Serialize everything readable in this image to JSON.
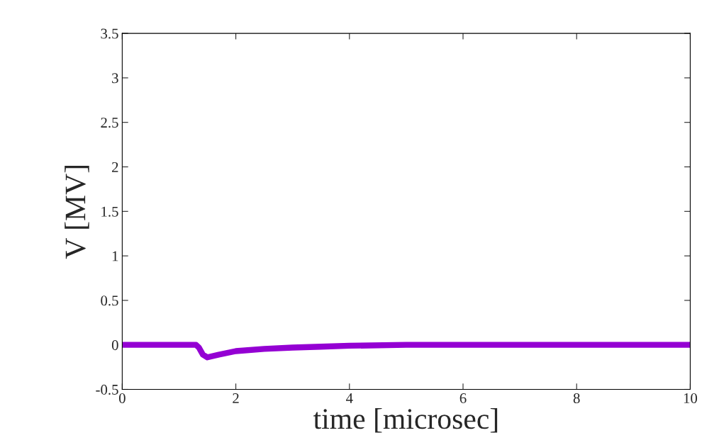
{
  "chart_data": {
    "type": "line",
    "xlabel": "time [microsec]",
    "ylabel": "V [MV]",
    "x": [
      0,
      0.5,
      1.0,
      1.3,
      1.35,
      1.42,
      1.5,
      1.7,
      2.0,
      2.5,
      3.0,
      3.5,
      4.0,
      5.0,
      6.0,
      8.0,
      10.0
    ],
    "series": [
      {
        "color": "#9400d3",
        "values": [
          0,
          0,
          0,
          0,
          -0.03,
          -0.11,
          -0.14,
          -0.11,
          -0.07,
          -0.045,
          -0.03,
          -0.02,
          -0.01,
          0,
          0,
          0,
          0
        ]
      }
    ],
    "xlim": [
      0,
      10
    ],
    "ylim": [
      -0.5,
      3.5
    ],
    "xticks": [
      0,
      2,
      4,
      6,
      8,
      10
    ],
    "yticks": [
      -0.5,
      0,
      0.5,
      1,
      1.5,
      2,
      2.5,
      3,
      3.5
    ],
    "grid": false,
    "legend": false
  }
}
